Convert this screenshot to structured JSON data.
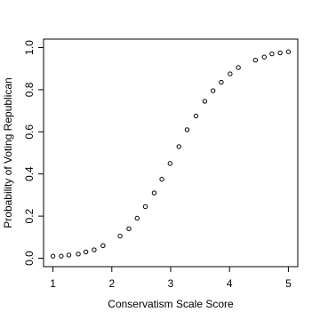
{
  "chart_data": {
    "type": "scatter",
    "x_label": "Conservatism Scale Score",
    "y_label": "Probability of Voting Republican",
    "x": [
      1.0,
      1.14,
      1.27,
      1.43,
      1.56,
      1.7,
      1.85,
      2.14,
      2.29,
      2.43,
      2.57,
      2.72,
      2.85,
      2.99,
      3.14,
      3.28,
      3.43,
      3.58,
      3.72,
      3.86,
      4.01,
      4.15,
      4.44,
      4.59,
      4.72,
      4.86,
      5.0
    ],
    "values": [
      0.01,
      0.01,
      0.015,
      0.02,
      0.03,
      0.04,
      0.06,
      0.105,
      0.14,
      0.19,
      0.245,
      0.31,
      0.375,
      0.45,
      0.53,
      0.61,
      0.675,
      0.745,
      0.795,
      0.835,
      0.875,
      0.905,
      0.94,
      0.955,
      0.97,
      0.975,
      0.98
    ],
    "color": "#000000",
    "xlim": [
      0.84,
      5.16
    ],
    "xticks": [
      1,
      2,
      3,
      4,
      5
    ],
    "ylim": [
      -0.04,
      1.04
    ],
    "yticks": [
      {
        "value": 0,
        "label": "0.0"
      },
      0.2,
      0.4,
      0.6,
      0.8,
      {
        "value": 1,
        "label": "1.0"
      }
    ]
  }
}
